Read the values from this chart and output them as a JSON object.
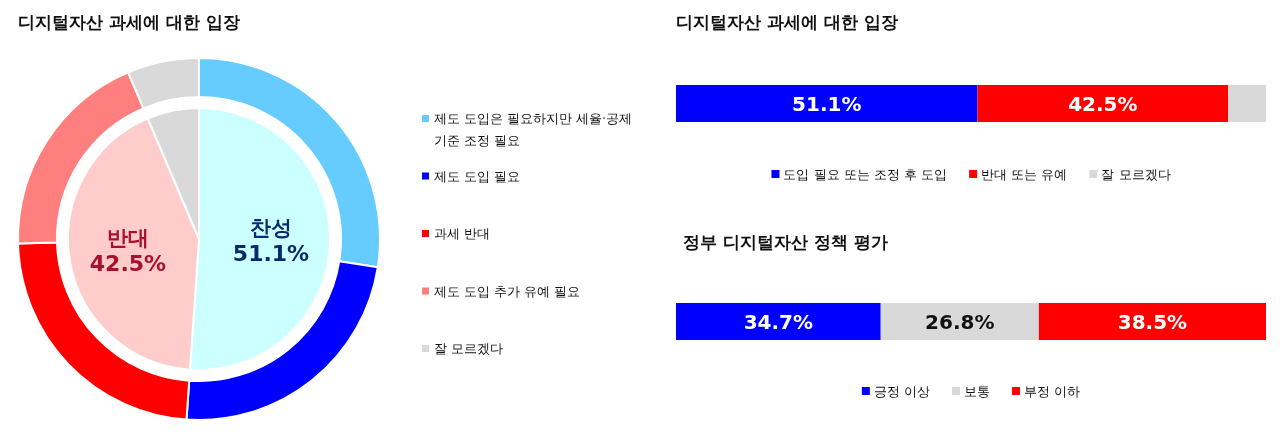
{
  "chart_data": [
    {
      "type": "donut",
      "title": "디지털자산 과세에 대한 입장",
      "legend": "right",
      "categories": [
        "제도 도입은 필요하지만 세율·공제 기준 조정 필요",
        "제도 도입 필요",
        "과세 반대",
        "제도 도입 추가 유예 필요",
        "잘 모르겠다"
      ],
      "values": [
        27.5,
        23.6,
        23.5,
        19.0,
        6.4
      ],
      "colors": [
        "#66ccff",
        "#0000ff",
        "#ff0000",
        "#ff7f7f",
        "#d9d9d9"
      ]
    },
    {
      "type": "pie",
      "categories": [
        "찬성",
        "반대",
        null
      ],
      "values": [
        51.1,
        42.5,
        6.4
      ],
      "value_labels": [
        "51.1%",
        "42.5%",
        null
      ],
      "colors": [
        "#ccffff",
        "#ffcccc",
        "#d9d9d9"
      ]
    },
    {
      "type": "bar",
      "title": "디지털자산 과세에 대한 입장",
      "orientation": "horizontal",
      "stacked": true,
      "categories": [
        null
      ],
      "xlim": [
        0,
        100
      ],
      "legend": "bottom",
      "series": [
        {
          "name": "도입 필요 또는 조정 후 도입",
          "color": "#0000ff",
          "values": [
            51.1
          ],
          "value_labels": [
            "51.1%"
          ]
        },
        {
          "name": "반대 또는 유예",
          "color": "#ff0000",
          "values": [
            42.5
          ],
          "value_labels": [
            "42.5%"
          ]
        },
        {
          "name": "잘 모르겠다",
          "color": "#d9d9d9",
          "values": [
            6.4
          ],
          "value_labels": [
            null
          ]
        }
      ]
    },
    {
      "type": "bar",
      "title": "정부 디지털자산 정책 평가",
      "orientation": "horizontal",
      "stacked": true,
      "categories": [
        null
      ],
      "xlim": [
        0,
        100
      ],
      "legend": "bottom",
      "series": [
        {
          "name": "긍정 이상",
          "color": "#0000ff",
          "values": [
            34.7
          ],
          "value_labels": [
            "34.7%"
          ]
        },
        {
          "name": "보통",
          "color": "#d9d9d9",
          "values": [
            26.8
          ],
          "value_labels": [
            "26.8%"
          ]
        },
        {
          "name": "부정 이하",
          "color": "#ff0000",
          "values": [
            38.5
          ],
          "value_labels": [
            "38.5%"
          ]
        }
      ]
    }
  ]
}
